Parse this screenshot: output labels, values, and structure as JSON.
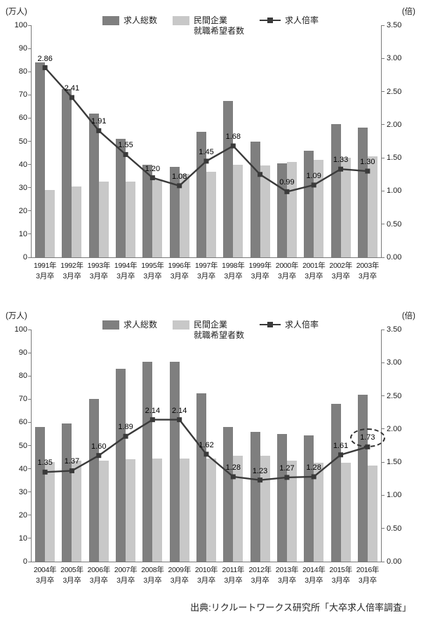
{
  "source": "出典:リクルートワークス研究所「大卒求人倍率調査」",
  "legend": {
    "totals": "求人総数",
    "applicants_line1": "民間企業",
    "applicants_line2": "就職希望者数",
    "ratio": "求人倍率"
  },
  "axes": {
    "left_unit": "(万人)",
    "right_unit": "(倍)",
    "left_max": 100,
    "right_max": 3.5,
    "left_ticks": [
      "0",
      "10",
      "20",
      "30",
      "40",
      "50",
      "60",
      "70",
      "80",
      "90",
      "100"
    ],
    "right_ticks": [
      "0.00",
      "0.50",
      "1.00",
      "1.50",
      "2.00",
      "2.50",
      "3.00",
      "3.50"
    ]
  },
  "colors": {
    "bar_dark": "#7f7f7f",
    "bar_light": "#c8c8c8",
    "line": "#3a3a3a",
    "axis": "#7a7a7a"
  },
  "chart_data": [
    {
      "type": "bar",
      "subtype": "grouped-bars-with-line",
      "categories": [
        "1991年",
        "1992年",
        "1993年",
        "1994年",
        "1995年",
        "1996年",
        "1997年",
        "1998年",
        "1999年",
        "2000年",
        "2001年",
        "2002年",
        "2003年"
      ],
      "category_line2": "3月卒",
      "bar_series": [
        {
          "name": "求人総数",
          "axis": "left",
          "values": [
            84,
            72.5,
            62,
            51,
            40,
            39,
            54,
            67.5,
            50,
            40.5,
            46,
            57.5,
            56
          ]
        },
        {
          "name": "民間企業就職希望者数",
          "axis": "left",
          "values": [
            29,
            30.5,
            32.5,
            32.5,
            33.5,
            36,
            37,
            40,
            39.5,
            41,
            42,
            43,
            43.5
          ]
        }
      ],
      "line_series": {
        "name": "求人倍率",
        "axis": "right",
        "values": [
          2.86,
          2.41,
          1.91,
          1.55,
          1.2,
          1.08,
          1.45,
          1.68,
          1.25,
          0.99,
          1.09,
          1.33,
          1.3
        ],
        "labels": [
          "2.86",
          "2.41",
          "1.91",
          "1.55",
          "1.20",
          "1.08",
          "1.45",
          "1.68",
          "",
          "0.99",
          "1.09",
          "1.33",
          "1.30"
        ]
      },
      "ylim_left": [
        0,
        100
      ],
      "ylim_right": [
        0,
        3.5
      ],
      "grid": false,
      "legend_position": "top-center",
      "highlight": null
    },
    {
      "type": "bar",
      "subtype": "grouped-bars-with-line",
      "categories": [
        "2004年",
        "2005年",
        "2006年",
        "2007年",
        "2008年",
        "2009年",
        "2010年",
        "2011年",
        "2012年",
        "2013年",
        "2014年",
        "2015年",
        "2016年"
      ],
      "category_line2": "3月卒",
      "bar_series": [
        {
          "name": "求人総数",
          "axis": "left",
          "values": [
            58,
            59.5,
            70,
            83,
            86,
            86,
            72.5,
            58,
            56,
            55,
            54.5,
            68,
            72
          ]
        },
        {
          "name": "民間企業就職希望者数",
          "axis": "left",
          "values": [
            43,
            43.5,
            43.5,
            44,
            44.5,
            44.5,
            44.5,
            45.5,
            45.5,
            43.5,
            42.5,
            42.5,
            41.5
          ]
        }
      ],
      "line_series": {
        "name": "求人倍率",
        "axis": "right",
        "values": [
          1.35,
          1.37,
          1.6,
          1.89,
          2.14,
          2.14,
          1.62,
          1.28,
          1.23,
          1.27,
          1.28,
          1.61,
          1.73
        ],
        "labels": [
          "1.35",
          "1.37",
          "1.60",
          "1.89",
          "2.14",
          "2.14",
          "1.62",
          "1.28",
          "1.23",
          "1.27",
          "1.28",
          "1.61",
          "1.73"
        ]
      },
      "ylim_left": [
        0,
        100
      ],
      "ylim_right": [
        0,
        3.5
      ],
      "grid": false,
      "legend_position": "top-center",
      "highlight": {
        "index": 12,
        "style": "dashed-ellipse",
        "label": "1.73"
      }
    }
  ]
}
